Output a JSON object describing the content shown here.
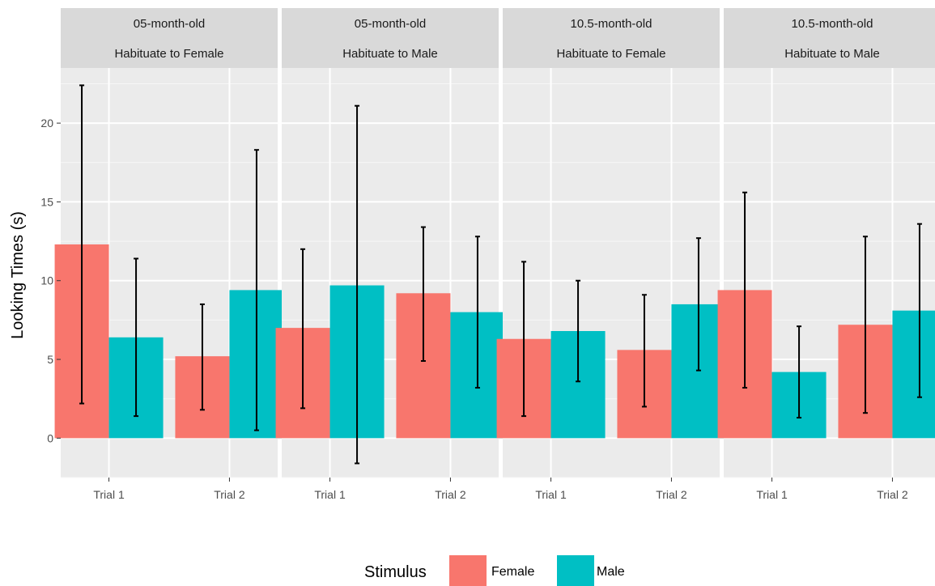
{
  "chart_data": {
    "type": "bar",
    "ylabel": "Looking Times (s)",
    "xlabel": "",
    "ylim": [
      -2.5,
      23.5
    ],
    "y_ticks": [
      0,
      5,
      10,
      15,
      20
    ],
    "categories": [
      "Trial 1",
      "Trial 2"
    ],
    "grid": true,
    "legend": {
      "title": "Stimulus",
      "position": "bottom",
      "items": [
        {
          "name": "Female",
          "color": "#F8766D"
        },
        {
          "name": "Male",
          "color": "#00BFC4"
        }
      ]
    },
    "panels": [
      {
        "strip_top": "05-month-old",
        "strip_bottom": "Habituate to Female",
        "series": [
          {
            "name": "Female",
            "values": [
              12.3,
              5.2
            ],
            "err_low": [
              2.2,
              1.8
            ],
            "err_high": [
              22.4,
              8.5
            ]
          },
          {
            "name": "Male",
            "values": [
              6.4,
              9.4
            ],
            "err_low": [
              1.4,
              0.5
            ],
            "err_high": [
              11.4,
              18.3
            ]
          }
        ]
      },
      {
        "strip_top": "05-month-old",
        "strip_bottom": "Habituate to Male",
        "series": [
          {
            "name": "Female",
            "values": [
              7.0,
              9.2
            ],
            "err_low": [
              1.9,
              4.9
            ],
            "err_high": [
              12.0,
              13.4
            ]
          },
          {
            "name": "Male",
            "values": [
              9.7,
              8.0
            ],
            "err_low": [
              -1.6,
              3.2
            ],
            "err_high": [
              21.1,
              12.8
            ]
          }
        ]
      },
      {
        "strip_top": "10.5-month-old",
        "strip_bottom": "Habituate to Female",
        "series": [
          {
            "name": "Female",
            "values": [
              6.3,
              5.6
            ],
            "err_low": [
              1.4,
              2.0
            ],
            "err_high": [
              11.2,
              9.1
            ]
          },
          {
            "name": "Male",
            "values": [
              6.8,
              8.5
            ],
            "err_low": [
              3.6,
              4.3
            ],
            "err_high": [
              10.0,
              12.7
            ]
          }
        ]
      },
      {
        "strip_top": "10.5-month-old",
        "strip_bottom": "Habituate to Male",
        "series": [
          {
            "name": "Female",
            "values": [
              9.4,
              7.2
            ],
            "err_low": [
              3.2,
              1.6
            ],
            "err_high": [
              15.6,
              12.8
            ]
          },
          {
            "name": "Male",
            "values": [
              4.2,
              8.1
            ],
            "err_low": [
              1.3,
              2.6
            ],
            "err_high": [
              7.1,
              13.6
            ]
          }
        ]
      }
    ]
  }
}
